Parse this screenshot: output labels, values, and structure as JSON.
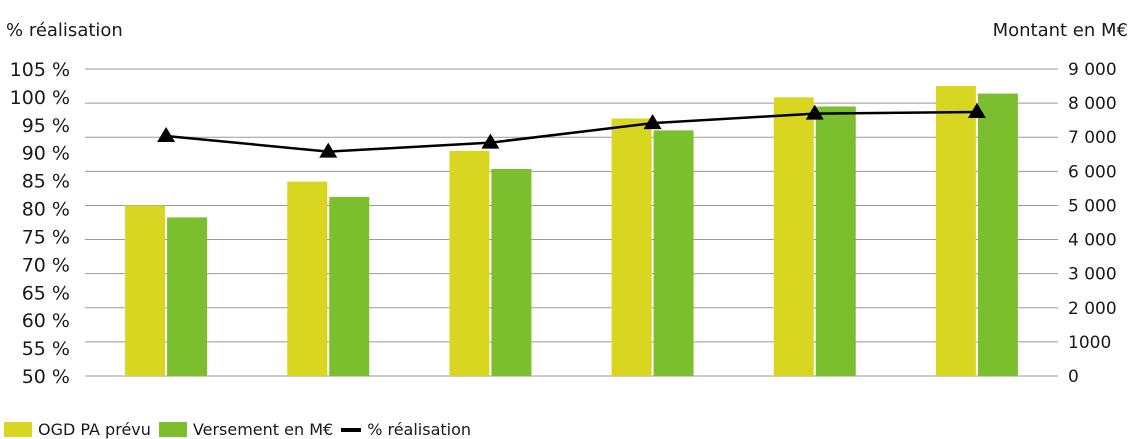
{
  "chart_data": {
    "type": "bar",
    "title": "",
    "categories": [
      "",
      "",
      "",
      "",
      "",
      ""
    ],
    "left_axis": {
      "title": "% réalisation",
      "range": [
        50,
        105
      ],
      "ticks": [
        50,
        55,
        60,
        65,
        70,
        75,
        80,
        85,
        90,
        95,
        100,
        105
      ],
      "tick_labels": [
        "50 %",
        "55 %",
        "60 %",
        "65 %",
        "70 %",
        "75 %",
        "80 %",
        "85 %",
        "90 %",
        "95 %",
        "100 %",
        "105 %"
      ]
    },
    "right_axis": {
      "title": "Montant en M€",
      "range": [
        0,
        9000
      ],
      "ticks": [
        0,
        1000,
        2000,
        3000,
        4000,
        5000,
        6000,
        7000,
        8000,
        9000
      ],
      "tick_labels": [
        "0",
        "1000",
        "2 000",
        "3 000",
        "4 000",
        "5 000",
        "6 000",
        "7 000",
        "8 000",
        "9 000"
      ]
    },
    "grid": "horizontal",
    "legend_position": "bottom-left",
    "series": [
      {
        "name": "OGD PA prévu",
        "kind": "bar",
        "axis": "right",
        "color": "#d8d621",
        "values": [
          5000,
          5700,
          6600,
          7550,
          8170,
          8500
        ]
      },
      {
        "name": "Versement en M€",
        "kind": "bar",
        "axis": "right",
        "color": "#7cbf2e",
        "values": [
          4650,
          5250,
          6070,
          7200,
          7900,
          8280
        ]
      },
      {
        "name": "% réalisation",
        "kind": "line",
        "axis": "left",
        "color": "#000000",
        "values": [
          93,
          90.2,
          91.8,
          95.3,
          97,
          97.3
        ]
      }
    ]
  }
}
